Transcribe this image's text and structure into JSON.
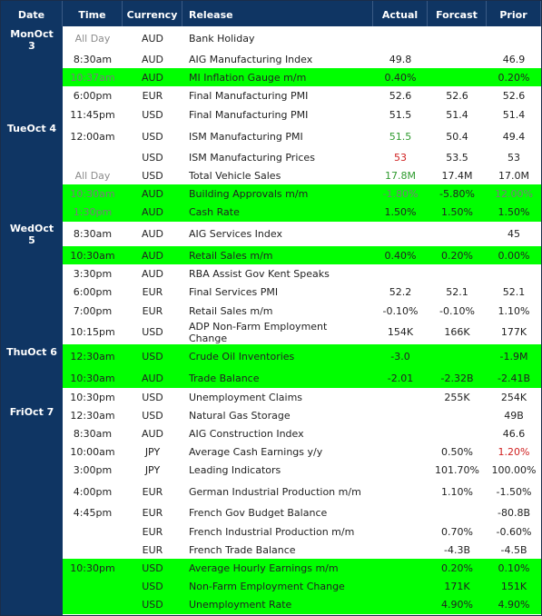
{
  "header": {
    "columns": [
      "Date",
      "Time",
      "Currency",
      "Release",
      "Actual",
      "Forcast",
      "Prior"
    ]
  },
  "days": [
    "MonOct 3",
    "TueOct 4",
    "WedOct 5",
    "ThuOct 6",
    "FriOct 7"
  ],
  "rows": [
    {
      "time": "All Day",
      "currency": "AUD",
      "release": "Bank Holiday",
      "colors": {
        "time": "#8c8c8c"
      }
    },
    {
      "time": "8:30am",
      "currency": "AUD",
      "release": "AIG Manufacturing Index",
      "actual": "49.8",
      "prior": "46.9"
    },
    {
      "time": "10:37am",
      "currency": "AUD",
      "release": "MI Inflation Gauge m/m",
      "actual": "0.40%",
      "prior": "0.20%",
      "highlight": true,
      "colors": {
        "time": "#7a7a7a"
      }
    },
    {
      "time": "6:00pm",
      "currency": "EUR",
      "release": "Final Manufacturing PMI",
      "actual": "52.6",
      "forecast": "52.6",
      "prior": "52.6"
    },
    {
      "time": "11:45pm",
      "currency": "USD",
      "release": "Final Manufacturing PMI",
      "actual": "51.5",
      "forecast": "51.4",
      "prior": "51.4"
    },
    {
      "time": "12:00am",
      "currency": "USD",
      "release": "ISM Manufacturing PMI",
      "actual": "51.5",
      "forecast": "50.4",
      "prior": "49.4",
      "colors": {
        "actual": "#2e9a2e"
      }
    },
    {
      "currency": "USD",
      "release": "ISM Manufacturing Prices",
      "actual": "53",
      "forecast": "53.5",
      "prior": "53",
      "colors": {
        "actual": "#d02020"
      }
    },
    {
      "time": "All Day",
      "currency": "USD",
      "release": "Total Vehicle Sales",
      "actual": "17.8M",
      "forecast": "17.4M",
      "prior": "17.0M",
      "colors": {
        "time": "#8c8c8c",
        "actual": "#2e9a2e"
      }
    },
    {
      "time": "10:30am",
      "currency": "AUD",
      "release": "Building Approvals m/m",
      "actual": "-1.80%",
      "forecast": "-5.80%",
      "prior": "12.00%",
      "highlight": true,
      "colors": {
        "time": "#7a7a7a",
        "actual": "#7a7a7a",
        "prior": "#7a7a7a"
      }
    },
    {
      "time": "1:30pm",
      "currency": "AUD",
      "release": "Cash Rate",
      "actual": "1.50%",
      "forecast": "1.50%",
      "prior": "1.50%",
      "highlight": true,
      "colors": {
        "time": "#7a7a7a"
      }
    },
    {
      "time": "8:30am",
      "currency": "AUD",
      "release": "AIG Services Index",
      "prior": "45"
    },
    {
      "time": "10:30am",
      "currency": "AUD",
      "release": "Retail Sales m/m",
      "actual": "0.40%",
      "forecast": "0.20%",
      "prior": "0.00%",
      "highlight": true
    },
    {
      "time": "3:30pm",
      "currency": "AUD",
      "release": "RBA Assist Gov Kent Speaks"
    },
    {
      "time": "6:00pm",
      "currency": "EUR",
      "release": "Final Services PMI",
      "actual": "52.2",
      "forecast": "52.1",
      "prior": "52.1"
    },
    {
      "time": "7:00pm",
      "currency": "EUR",
      "release": "Retail Sales m/m",
      "actual": "-0.10%",
      "forecast": "-0.10%",
      "prior": "1.10%"
    },
    {
      "time": "10:15pm",
      "currency": "USD",
      "release": "ADP Non-Farm Employment Change",
      "actual": "154K",
      "forecast": "166K",
      "prior": "177K"
    },
    {
      "time": "12:30am",
      "currency": "USD",
      "release": "Crude Oil Inventories",
      "actual": "-3.0",
      "prior": "-1.9M",
      "highlight": true
    },
    {
      "time": "10:30am",
      "currency": "AUD",
      "release": "Trade Balance",
      "actual": "-2.01",
      "forecast": "-2.32B",
      "prior": "-2.41B",
      "highlight": true
    },
    {
      "time": "10:30pm",
      "currency": "USD",
      "release": "Unemployment Claims",
      "forecast": "255K",
      "prior": "254K"
    },
    {
      "time": "12:30am",
      "currency": "USD",
      "release": "Natural Gas Storage",
      "prior": "49B"
    },
    {
      "time": "8:30am",
      "currency": "AUD",
      "release": "AIG Construction Index",
      "prior": "46.6"
    },
    {
      "time": "10:00am",
      "currency": "JPY",
      "release": "Average Cash Earnings y/y",
      "forecast": "0.50%",
      "prior": "1.20%",
      "colors": {
        "prior": "#d02020"
      }
    },
    {
      "time": "3:00pm",
      "currency": "JPY",
      "release": "Leading Indicators",
      "forecast": "101.70%",
      "prior": "100.00%"
    },
    {
      "time": "4:00pm",
      "currency": "EUR",
      "release": "German Industrial Production m/m",
      "forecast": "1.10%",
      "prior": "-1.50%"
    },
    {
      "time": "4:45pm",
      "currency": "EUR",
      "release": "French Gov Budget Balance",
      "prior": "-80.8B"
    },
    {
      "currency": "EUR",
      "release": "French Industrial Production m/m",
      "forecast": "0.70%",
      "prior": "-0.60%"
    },
    {
      "currency": "EUR",
      "release": "French Trade Balance",
      "forecast": "-4.3B",
      "prior": "-4.5B"
    },
    {
      "time": "10:30pm",
      "currency": "USD",
      "release": "Average Hourly Earnings m/m",
      "forecast": "0.20%",
      "prior": "0.10%",
      "highlight": true
    },
    {
      "currency": "USD",
      "release": "Non-Farm Employment Change",
      "forecast": "171K",
      "prior": "151K",
      "highlight": true
    },
    {
      "currency": "USD",
      "release": "Unemployment Rate",
      "forecast": "4.90%",
      "prior": "4.90%",
      "highlight": true
    }
  ]
}
